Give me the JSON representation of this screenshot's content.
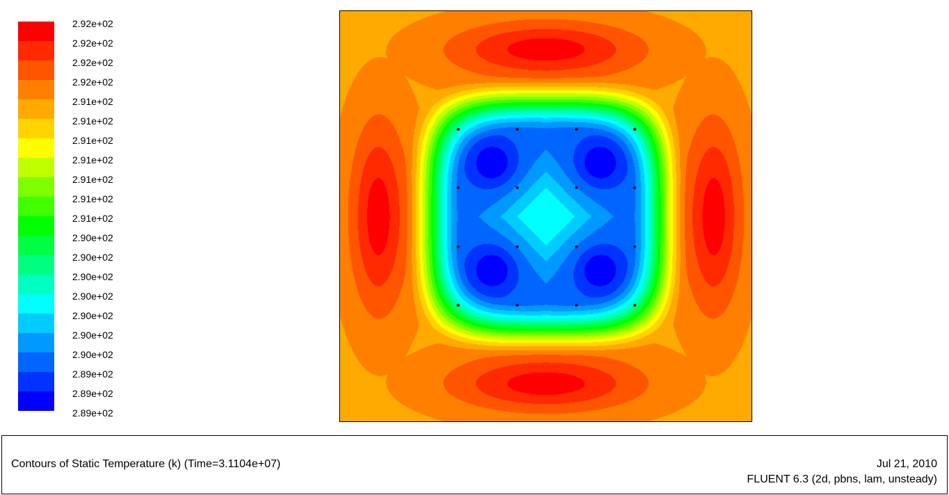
{
  "chart_data": {
    "type": "heatmap",
    "title": "Contours of Static Temperature (k)  (Time=3.1104e+07)",
    "colorbar": {
      "labels": [
        "2.92e+02",
        "2.92e+02",
        "2.92e+02",
        "2.92e+02",
        "2.91e+02",
        "2.91e+02",
        "2.91e+02",
        "2.91e+02",
        "2.91e+02",
        "2.91e+02",
        "2.91e+02",
        "2.90e+02",
        "2.90e+02",
        "2.90e+02",
        "2.90e+02",
        "2.90e+02",
        "2.90e+02",
        "2.90e+02",
        "2.89e+02",
        "2.89e+02"
      ],
      "bottom_label": "2.89e+02",
      "colors": [
        "#ff0000",
        "#ff2a00",
        "#ff5500",
        "#ff8000",
        "#ffaa00",
        "#ffd400",
        "#ffff00",
        "#c0ff00",
        "#80ff00",
        "#40ff00",
        "#00ff00",
        "#00ff40",
        "#00ff80",
        "#00ffc0",
        "#00ffff",
        "#00ccff",
        "#0099ff",
        "#0066ff",
        "#0033ff",
        "#0000ff"
      ],
      "range": [
        289,
        292
      ]
    }
  },
  "footer": {
    "title": "Contours of Static Temperature (k)  (Time=3.1104e+07)",
    "date": "Jul 21, 2010",
    "version": "FLUENT 6.3 (2d, pbns, lam, unsteady)"
  }
}
